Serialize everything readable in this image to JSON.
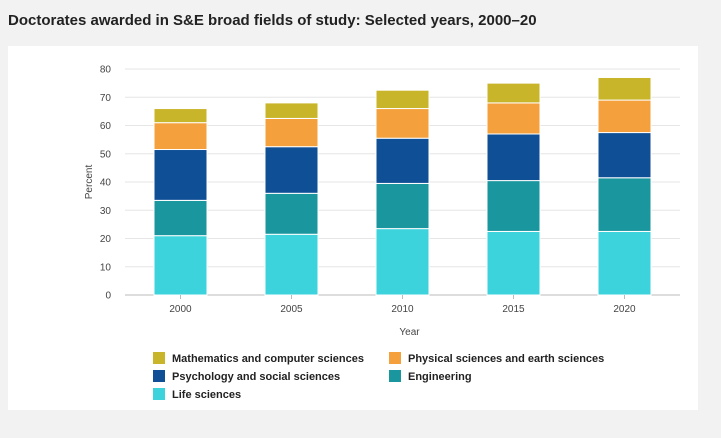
{
  "header": {
    "title": "Doctorates awarded in S&E broad fields of study: Selected years, 2000–20"
  },
  "chart_data": {
    "type": "bar",
    "stacked": true,
    "title": "Doctorates awarded in S&E broad fields of study: Selected years, 2000–20",
    "xlabel": "Year",
    "ylabel": "Percent",
    "ylim": [
      0,
      80
    ],
    "yticks": [
      0,
      10,
      20,
      30,
      40,
      50,
      60,
      70,
      80
    ],
    "categories": [
      "2000",
      "2005",
      "2010",
      "2015",
      "2020"
    ],
    "series": [
      {
        "name": "Life sciences",
        "color": "#3dd3dc",
        "values": [
          21,
          21.5,
          23.5,
          22.5,
          22.5
        ]
      },
      {
        "name": "Engineering",
        "color": "#1a969e",
        "values": [
          12.5,
          14.5,
          16,
          18,
          19
        ]
      },
      {
        "name": "Psychology and social sciences",
        "color": "#0f4f96",
        "values": [
          18,
          16.5,
          16,
          16.5,
          16
        ]
      },
      {
        "name": "Physical sciences and earth sciences",
        "color": "#f4a13d",
        "values": [
          9.5,
          10,
          10.5,
          11,
          11.5
        ]
      },
      {
        "name": "Mathematics and computer sciences",
        "color": "#c9b52a",
        "values": [
          5,
          5.5,
          6.5,
          7,
          8
        ]
      }
    ],
    "legend": [
      {
        "name": "Mathematics and computer sciences",
        "color": "#c9b52a"
      },
      {
        "name": "Physical sciences and earth sciences",
        "color": "#f4a13d"
      },
      {
        "name": "Psychology and social sciences",
        "color": "#0f4f96"
      },
      {
        "name": "Engineering",
        "color": "#1a969e"
      },
      {
        "name": "Life sciences",
        "color": "#3dd3dc"
      }
    ],
    "legend_position": "bottom-left",
    "grid": true
  }
}
